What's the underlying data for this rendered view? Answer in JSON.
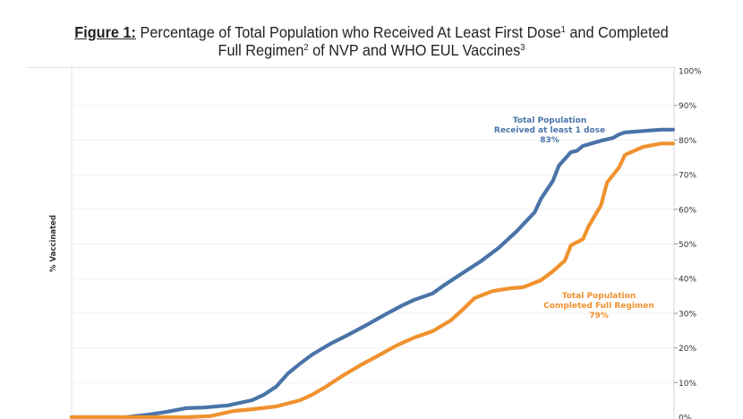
{
  "header": {
    "figure_label": "Figure 1:",
    "title_line1_a": " Percentage of Total Population who Received At Least First Dose",
    "title_sup1": "1",
    "title_line1_b": " and Completed",
    "title_line2_a": "Full Regimen",
    "title_sup2": "2",
    "title_line2_b": "  of NVP and WHO EUL Vaccines",
    "title_sup3": "3"
  },
  "chart_data": {
    "type": "line",
    "title": "Percentage of Total Population who Received At Least First Dose and Completed Full Regimen of NVP and WHO EUL Vaccines",
    "xlabel": "",
    "ylabel": "% Vaccinated",
    "ylim": [
      0,
      100
    ],
    "y_axis_position": "right",
    "grid": true,
    "yticks": [
      "0%",
      "10%",
      "20%",
      "30%",
      "40%",
      "50%",
      "60%",
      "70%",
      "80%",
      "90%",
      "100%"
    ],
    "x_note": "time index 0-100 (no x-axis labels shown)",
    "series": [
      {
        "name": "Total Population Received at least 1 dose",
        "color": "#4a74a8",
        "x": [
          0,
          9,
          13,
          16,
          19,
          22,
          26,
          30,
          32,
          34,
          36,
          38,
          40,
          43,
          46,
          49,
          52,
          55,
          57,
          60,
          62,
          65,
          68,
          71,
          74,
          77,
          78,
          80,
          81,
          83,
          84,
          85,
          88,
          90,
          91,
          92,
          95,
          98,
          100
        ],
        "values": [
          0,
          0,
          0.8,
          1.6,
          2.6,
          2.8,
          3.4,
          4.9,
          6.5,
          8.8,
          12.7,
          15.5,
          18.1,
          21.2,
          23.8,
          26.6,
          29.5,
          32.3,
          33.9,
          35.7,
          38.2,
          41.6,
          45.0,
          48.9,
          53.7,
          59.2,
          63.0,
          68.2,
          72.6,
          76.5,
          76.9,
          78.3,
          79.8,
          80.6,
          81.6,
          82.2,
          82.6,
          83.0,
          83.0
        ]
      },
      {
        "name": "Total Population Completed Full Regimen",
        "color": "#f0922f",
        "x": [
          0,
          19,
          23,
          27,
          30,
          34,
          38,
          40,
          42,
          45,
          48,
          51,
          54,
          57,
          60,
          63,
          65,
          67,
          70,
          73,
          75,
          78,
          80,
          82,
          83,
          85,
          86,
          88,
          89,
          91,
          92,
          95,
          98,
          100
        ],
        "values": [
          0,
          0,
          0.3,
          1.8,
          2.3,
          3.1,
          4.9,
          6.5,
          8.5,
          11.9,
          15.0,
          17.8,
          20.7,
          23.0,
          24.8,
          27.9,
          31.0,
          34.4,
          36.4,
          37.2,
          37.5,
          39.5,
          42.1,
          45.2,
          49.6,
          51.4,
          55.3,
          61.2,
          67.7,
          72.1,
          75.7,
          78.0,
          79.0,
          79.0
        ]
      }
    ],
    "annotations": [
      {
        "series": 0,
        "lines": [
          "Total Population",
          "Received at least 1 dose",
          "83%"
        ]
      },
      {
        "series": 1,
        "lines": [
          "Total Population",
          "Completed Full Regimen",
          "79%"
        ]
      }
    ]
  }
}
